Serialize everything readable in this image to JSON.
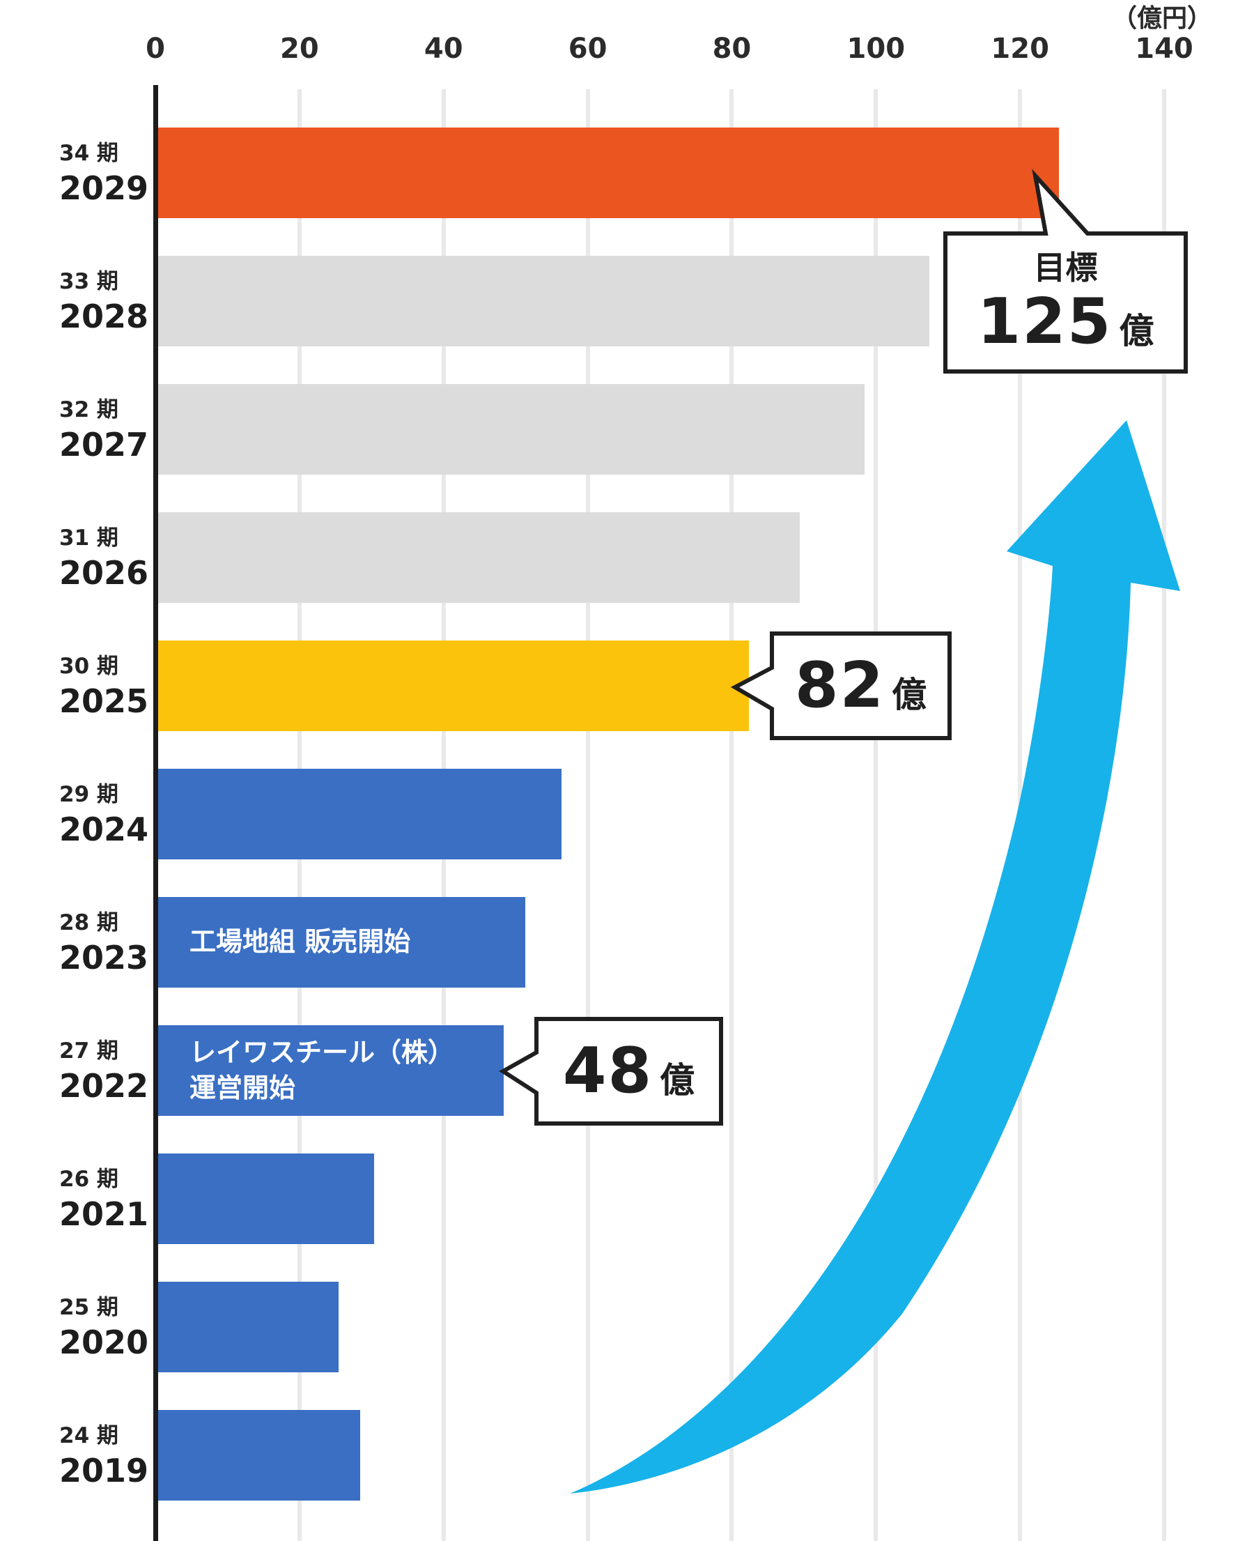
{
  "axis": {
    "unit_label": "（億円）",
    "ticks": [
      "0",
      "20",
      "40",
      "60",
      "80",
      "100",
      "120",
      "140"
    ],
    "tick_values": [
      0,
      20,
      40,
      60,
      80,
      100,
      120,
      140
    ],
    "max": 140
  },
  "bars": [
    {
      "period": "34 期",
      "year": "2029",
      "value": 125,
      "color": "orange",
      "bar_text": []
    },
    {
      "period": "33 期",
      "year": "2028",
      "value": 107,
      "color": "gray",
      "bar_text": []
    },
    {
      "period": "32 期",
      "year": "2027",
      "value": 98,
      "color": "gray",
      "bar_text": []
    },
    {
      "period": "31 期",
      "year": "2026",
      "value": 89,
      "color": "gray",
      "bar_text": []
    },
    {
      "period": "30 期",
      "year": "2025",
      "value": 82,
      "color": "yellow",
      "bar_text": []
    },
    {
      "period": "29 期",
      "year": "2024",
      "value": 56,
      "color": "blue",
      "bar_text": []
    },
    {
      "period": "28 期",
      "year": "2023",
      "value": 51,
      "color": "blue",
      "bar_text": [
        "工場地組 販売開始"
      ]
    },
    {
      "period": "27 期",
      "year": "2022",
      "value": 48,
      "color": "blue",
      "bar_text": [
        "レイワスチール（株）",
        "運営開始"
      ]
    },
    {
      "period": "26 期",
      "year": "2021",
      "value": 30,
      "color": "blue",
      "bar_text": []
    },
    {
      "period": "25 期",
      "year": "2020",
      "value": 25,
      "color": "blue",
      "bar_text": []
    },
    {
      "period": "24 期",
      "year": "2019",
      "value": 28,
      "color": "blue",
      "bar_text": []
    }
  ],
  "callouts": {
    "target": {
      "title": "目標",
      "value": "125",
      "unit": "億"
    },
    "mid": {
      "title": "",
      "value": "82",
      "unit": "億"
    },
    "low": {
      "title": "",
      "value": "48",
      "unit": "億"
    }
  },
  "colors": {
    "orange": "#ea5520",
    "gray": "#dcdcdc",
    "yellow": "#fcc30d",
    "blue": "#3a6fc4",
    "arrow": "#17b2e9",
    "grid": "#e9e9e9",
    "axis": "#1c1c1c",
    "callout_border": "#1f1f1f"
  },
  "chart_data": {
    "type": "bar",
    "orientation": "horizontal",
    "unit": "億円",
    "xlabel": "（億円）",
    "xlim": [
      0,
      140
    ],
    "x_ticks": [
      0,
      20,
      40,
      60,
      80,
      100,
      120,
      140
    ],
    "grid": true,
    "legend": false,
    "categories": [
      "34期 2029",
      "33期 2028",
      "32期 2027",
      "31期 2026",
      "30期 2025",
      "29期 2024",
      "28期 2023",
      "27期 2022",
      "26期 2021",
      "25期 2020",
      "24期 2019"
    ],
    "values": [
      125,
      107,
      98,
      89,
      82,
      56,
      51,
      48,
      30,
      25,
      28
    ],
    "bar_colors": [
      "#ea5520",
      "#dcdcdc",
      "#dcdcdc",
      "#dcdcdc",
      "#fcc30d",
      "#3a6fc4",
      "#3a6fc4",
      "#3a6fc4",
      "#3a6fc4",
      "#3a6fc4",
      "#3a6fc4"
    ],
    "annotations": [
      {
        "target_category": "34期 2029",
        "text": "目標 125億",
        "style": "speech-bubble"
      },
      {
        "target_category": "30期 2025",
        "text": "82億",
        "style": "speech-bubble"
      },
      {
        "target_category": "27期 2022",
        "text": "48億",
        "style": "speech-bubble"
      },
      {
        "target_category": "28期 2023",
        "text": "工場地組 販売開始",
        "style": "in-bar-label"
      },
      {
        "target_category": "27期 2022",
        "text": "レイワスチール（株）運営開始",
        "style": "in-bar-label"
      },
      {
        "text": "",
        "style": "growth-swoosh-arrow",
        "color": "#17b2e9"
      }
    ]
  }
}
